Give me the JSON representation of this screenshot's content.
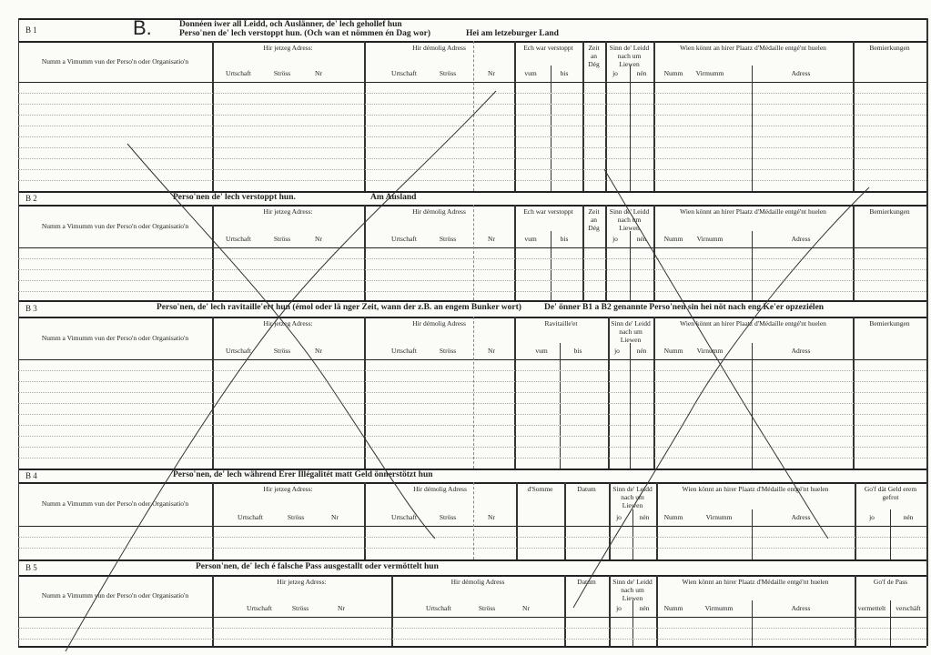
{
  "document": {
    "big_letter": "B."
  },
  "sections": [
    {
      "label": "B 1",
      "title": [
        "Donnéen iwer all Leidd, och Auslänner, de' lech gehollef hun",
        "Perso'nen de' lech verstoppt hun. (Och wan et nömmen én Dag wor)"
      ],
      "title_extra": "Hei am letzeburger Land",
      "columns": [
        {
          "label": "Numm a Vimumm vun der Perso'n oder Organisatio'n",
          "subs": []
        },
        {
          "label": "Hir jetzeg Adress:",
          "subs": [
            "Urtschaft",
            "Ströss",
            "Nr"
          ]
        },
        {
          "label": "Hir démolig Adress",
          "subs": [
            "Urtschaft",
            "Ströss",
            "Nr"
          ]
        },
        {
          "label": "Ech war verstoppt",
          "subs": [
            "vum",
            "bis"
          ]
        },
        {
          "label": "Zeit an Dég",
          "subs": []
        },
        {
          "label": "Sinn de' Leidd nach um Liewen",
          "subs": [
            "jo",
            "nén"
          ]
        },
        {
          "label": "Wien könnt an hirer Plaatz d'Médaille entgé'nt huelen",
          "subs": [
            "Numm",
            "Virmumm",
            "Adress"
          ]
        },
        {
          "label": "Bemierkungen",
          "subs": []
        }
      ]
    },
    {
      "label": "B 2",
      "title": [
        "Perso'nen de' lech verstoppt hun."
      ],
      "title_extra": "Am Ausland",
      "columns": [
        {
          "label": "Numm a Vimumm vun der Perso'n oder Organisatio'n",
          "subs": []
        },
        {
          "label": "Hir jetzeg Adress:",
          "subs": [
            "Urtschaft",
            "Ströss",
            "Nr"
          ]
        },
        {
          "label": "Hir démolig Adress",
          "subs": [
            "Urtschaft",
            "Ströss",
            "Nr"
          ]
        },
        {
          "label": "Ech war verstoppt",
          "subs": [
            "vum",
            "bis"
          ]
        },
        {
          "label": "Zeit an Dég",
          "subs": []
        },
        {
          "label": "Sinn de' Leidd nach um Liewen",
          "subs": [
            "jo",
            "nén"
          ]
        },
        {
          "label": "Wien könnt an hirer Plaatz d'Médaille entgé'nt huelen",
          "subs": [
            "Numm",
            "Virnumm",
            "Adress"
          ]
        },
        {
          "label": "Bemierkungen",
          "subs": []
        }
      ]
    },
    {
      "label": "B 3",
      "title": [
        "Perso'nen, de' lech ravitaille'ert hun (émol oder lä nger Zeit, wann der z.B. an engem Bunker wort)"
      ],
      "title_extra": "De' önner B1 a B2 genannte Perso'nen sin hei nöt nach eng Ke'er opzeziélen",
      "columns": [
        {
          "label": "Numm a Vimumm vun der Perso'n oder Organisatio'n",
          "subs": []
        },
        {
          "label": "Hir jetzeg Adress:",
          "subs": [
            "Urtschaft",
            "Ströss",
            "Nr"
          ]
        },
        {
          "label": "Hir démolig Adress",
          "subs": [
            "Urtschaft",
            "Ströss",
            "Nr"
          ]
        },
        {
          "label": "Ravitaille'et",
          "subs": [
            "vum",
            "bis"
          ]
        },
        {
          "label": "Sinn de' Leidd nach um Liewen",
          "subs": [
            "jo",
            "nén"
          ]
        },
        {
          "label": "Wien könnt an hirer Plaatz d'Médaille entgé'nt huelen",
          "subs": [
            "Numm",
            "Virnumm",
            "Adress"
          ]
        },
        {
          "label": "Bemierkungen",
          "subs": []
        }
      ]
    },
    {
      "label": "B 4",
      "title": [
        "Perso'nen, de' lech während Erer Illégalitét matt Geld önnerstötzt hun"
      ],
      "title_extra": "",
      "columns": [
        {
          "label": "Numm a Vimumm vun der Perso'n oder Organisatio'n",
          "subs": []
        },
        {
          "label": "Hir jetzeg Adress:",
          "subs": [
            "Urtschaft",
            "Ströss",
            "Nr"
          ]
        },
        {
          "label": "Hir démolig Adress",
          "subs": [
            "Urtschaft",
            "Ströss",
            "Nr"
          ]
        },
        {
          "label": "d'Somme",
          "subs": []
        },
        {
          "label": "Datum",
          "subs": []
        },
        {
          "label": "Sinn de' Leidd nach um Liewen",
          "subs": [
            "jo",
            "nén"
          ]
        },
        {
          "label": "Wien könnt an hirer Plaatz d'Médaille entgé'nt huelen",
          "subs": [
            "Numm",
            "Virnumm",
            "Adress"
          ]
        },
        {
          "label": "Go'f dät Geld erem gefrot",
          "subs": [
            "jo",
            "nén"
          ]
        }
      ]
    },
    {
      "label": "B 5",
      "title": [
        "Person'nen, de' lech é falsche Pass ausgestallt oder vermöttelt hun"
      ],
      "title_extra": "",
      "columns": [
        {
          "label": "Numm a Vimumm vun der Perso'n oder Organisatio'n",
          "subs": []
        },
        {
          "label": "Hir jetzeg Adress:",
          "subs": [
            "Urtschaft",
            "Ströss",
            "Nr"
          ]
        },
        {
          "label": "Hir démolig Adress",
          "subs": [
            "Urtschaft",
            "Ströss",
            "Nr"
          ]
        },
        {
          "label": "Datum",
          "subs": []
        },
        {
          "label": "Sinn de' Leidd nach um Liewen",
          "subs": [
            "jo",
            "nén"
          ]
        },
        {
          "label": "Wien könnt an hirer Plaatz d'Médaille entgé'nt huelen",
          "subs": [
            "Numm",
            "Virmumm",
            "Adress"
          ]
        },
        {
          "label": "Go'f de Pass",
          "subs": [
            "vermettelt",
            "verschäft"
          ]
        }
      ]
    }
  ]
}
